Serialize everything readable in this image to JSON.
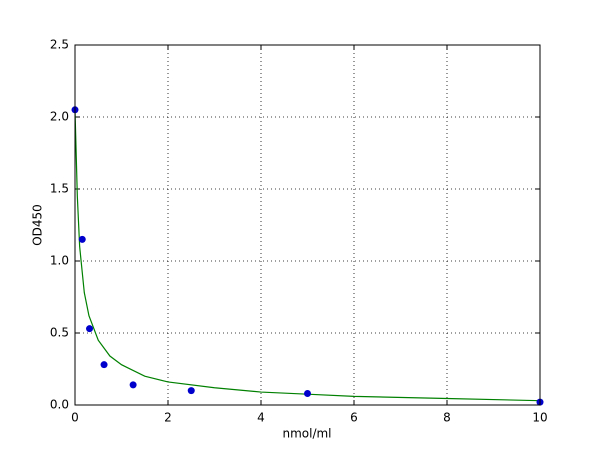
{
  "chart_data": {
    "type": "scatter",
    "x_label": "nmol/ml",
    "y_label": "OD450",
    "xlim": [
      0,
      10
    ],
    "ylim": [
      0,
      2.5
    ],
    "xticks": [
      0,
      2,
      4,
      6,
      8,
      10
    ],
    "yticks": [
      {
        "value": 0,
        "label": "0.0"
      },
      0.5,
      {
        "value": 1,
        "label": "1.0"
      },
      1.5,
      {
        "value": 2,
        "label": "2.0"
      },
      2.5
    ],
    "grid": true,
    "series": [
      {
        "type": "scatter",
        "color": "#0000cc",
        "x": [
          0,
          0.156,
          0.3125,
          0.625,
          1.25,
          2.5,
          5,
          10
        ],
        "values": [
          2.05,
          1.15,
          0.53,
          0.28,
          0.14,
          0.1,
          0.08,
          0.02
        ]
      },
      {
        "type": "line",
        "color": "#008000",
        "x": [
          0,
          0.05,
          0.1,
          0.2,
          0.3,
          0.5,
          0.75,
          1,
          1.5,
          2,
          3,
          4,
          5,
          6,
          8,
          10
        ],
        "values": [
          2.05,
          1.45,
          1.1,
          0.78,
          0.62,
          0.45,
          0.34,
          0.28,
          0.2,
          0.16,
          0.12,
          0.09,
          0.075,
          0.06,
          0.045,
          0.03
        ]
      }
    ]
  }
}
